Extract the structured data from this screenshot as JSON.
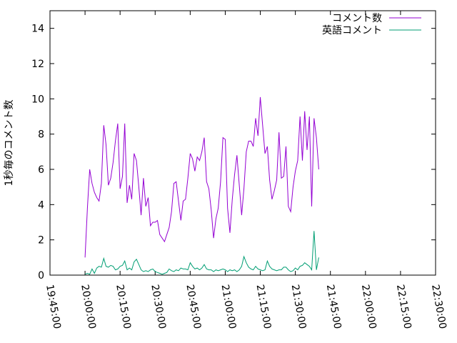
{
  "chart_data": {
    "type": "line",
    "ylabel": "1秒毎のコメント数",
    "ylim": [
      0,
      15
    ],
    "xlim": [
      "19:45:00",
      "22:30:00"
    ],
    "y_ticks": [
      "0",
      "2",
      "4",
      "6",
      "8",
      "10",
      "12",
      "14"
    ],
    "x_ticks": [
      "19:45:00",
      "20:00:00",
      "20:15:00",
      "20:30:00",
      "20:45:00",
      "21:00:00",
      "21:15:00",
      "21:30:00",
      "21:45:00",
      "22:00:00",
      "22:15:00",
      "22:30:00"
    ],
    "legend_position": "top-right",
    "series": [
      {
        "name": "コメント数",
        "color": "#9400d3",
        "points": [
          [
            "20:00:00",
            1.0
          ],
          [
            "20:01:00",
            3.8
          ],
          [
            "20:02:00",
            6.0
          ],
          [
            "20:03:00",
            5.2
          ],
          [
            "20:04:00",
            4.7
          ],
          [
            "20:05:00",
            4.4
          ],
          [
            "20:06:00",
            4.2
          ],
          [
            "20:07:00",
            5.2
          ],
          [
            "20:08:00",
            8.5
          ],
          [
            "20:09:00",
            7.4
          ],
          [
            "20:10:00",
            5.1
          ],
          [
            "20:11:00",
            5.5
          ],
          [
            "20:12:00",
            6.4
          ],
          [
            "20:13:00",
            7.6
          ],
          [
            "20:14:00",
            8.6
          ],
          [
            "20:15:00",
            4.9
          ],
          [
            "20:16:00",
            5.6
          ],
          [
            "20:17:00",
            8.6
          ],
          [
            "20:18:00",
            4.1
          ],
          [
            "20:19:00",
            5.1
          ],
          [
            "20:20:00",
            4.3
          ],
          [
            "20:21:00",
            6.9
          ],
          [
            "20:22:00",
            6.5
          ],
          [
            "20:23:00",
            5.0
          ],
          [
            "20:24:00",
            3.4
          ],
          [
            "20:25:00",
            5.5
          ],
          [
            "20:26:00",
            3.9
          ],
          [
            "20:27:00",
            4.4
          ],
          [
            "20:28:00",
            2.8
          ],
          [
            "20:29:00",
            3.0
          ],
          [
            "20:30:00",
            3.0
          ],
          [
            "20:31:00",
            3.1
          ],
          [
            "20:32:00",
            2.3
          ],
          [
            "20:33:00",
            2.1
          ],
          [
            "20:34:00",
            1.9
          ],
          [
            "20:35:00",
            2.3
          ],
          [
            "20:36:00",
            2.7
          ],
          [
            "20:37:00",
            3.6
          ],
          [
            "20:38:00",
            5.2
          ],
          [
            "20:39:00",
            5.3
          ],
          [
            "20:40:00",
            4.2
          ],
          [
            "20:41:00",
            3.1
          ],
          [
            "20:42:00",
            4.2
          ],
          [
            "20:43:00",
            4.3
          ],
          [
            "20:44:00",
            5.5
          ],
          [
            "20:45:00",
            6.9
          ],
          [
            "20:46:00",
            6.6
          ],
          [
            "20:47:00",
            5.9
          ],
          [
            "20:48:00",
            6.7
          ],
          [
            "20:49:00",
            6.5
          ],
          [
            "20:50:00",
            7.0
          ],
          [
            "20:51:00",
            7.8
          ],
          [
            "20:52:00",
            5.3
          ],
          [
            "20:53:00",
            4.9
          ],
          [
            "20:54:00",
            3.7
          ],
          [
            "20:55:00",
            2.1
          ],
          [
            "20:56:00",
            3.2
          ],
          [
            "20:57:00",
            3.8
          ],
          [
            "20:58:00",
            5.3
          ],
          [
            "20:59:00",
            7.8
          ],
          [
            "21:00:00",
            7.7
          ],
          [
            "21:01:00",
            3.8
          ],
          [
            "21:02:00",
            2.4
          ],
          [
            "21:03:00",
            4.3
          ],
          [
            "21:04:00",
            5.7
          ],
          [
            "21:05:00",
            6.8
          ],
          [
            "21:06:00",
            5.1
          ],
          [
            "21:07:00",
            3.4
          ],
          [
            "21:08:00",
            4.9
          ],
          [
            "21:09:00",
            7.0
          ],
          [
            "21:10:00",
            7.6
          ],
          [
            "21:11:00",
            7.6
          ],
          [
            "21:12:00",
            7.3
          ],
          [
            "21:13:00",
            8.9
          ],
          [
            "21:14:00",
            7.9
          ],
          [
            "21:15:00",
            10.1
          ],
          [
            "21:16:00",
            8.5
          ],
          [
            "21:17:00",
            6.9
          ],
          [
            "21:18:00",
            7.3
          ],
          [
            "21:19:00",
            5.4
          ],
          [
            "21:20:00",
            4.3
          ],
          [
            "21:21:00",
            4.8
          ],
          [
            "21:22:00",
            5.4
          ],
          [
            "21:23:00",
            8.1
          ],
          [
            "21:24:00",
            5.5
          ],
          [
            "21:25:00",
            5.6
          ],
          [
            "21:26:00",
            7.3
          ],
          [
            "21:27:00",
            3.9
          ],
          [
            "21:28:00",
            3.6
          ],
          [
            "21:29:00",
            5.0
          ],
          [
            "21:30:00",
            5.9
          ],
          [
            "21:31:00",
            6.5
          ],
          [
            "21:32:00",
            9.0
          ],
          [
            "21:33:00",
            6.5
          ],
          [
            "21:34:00",
            9.3
          ],
          [
            "21:35:00",
            7.1
          ],
          [
            "21:36:00",
            9.0
          ],
          [
            "21:37:00",
            3.9
          ],
          [
            "21:38:00",
            8.9
          ],
          [
            "21:39:00",
            7.8
          ],
          [
            "21:40:00",
            6.0
          ]
        ]
      },
      {
        "name": "英語コメント",
        "color": "#009e73",
        "points": [
          [
            "20:00:00",
            0.05
          ],
          [
            "20:01:00",
            0.1
          ],
          [
            "20:02:00",
            0.05
          ],
          [
            "20:03:00",
            0.35
          ],
          [
            "20:04:00",
            0.1
          ],
          [
            "20:05:00",
            0.4
          ],
          [
            "20:06:00",
            0.5
          ],
          [
            "20:07:00",
            0.45
          ],
          [
            "20:08:00",
            0.95
          ],
          [
            "20:09:00",
            0.5
          ],
          [
            "20:10:00",
            0.45
          ],
          [
            "20:11:00",
            0.55
          ],
          [
            "20:12:00",
            0.5
          ],
          [
            "20:13:00",
            0.3
          ],
          [
            "20:14:00",
            0.35
          ],
          [
            "20:15:00",
            0.5
          ],
          [
            "20:16:00",
            0.55
          ],
          [
            "20:17:00",
            0.8
          ],
          [
            "20:18:00",
            0.3
          ],
          [
            "20:19:00",
            0.4
          ],
          [
            "20:20:00",
            0.3
          ],
          [
            "20:21:00",
            0.75
          ],
          [
            "20:22:00",
            0.9
          ],
          [
            "20:23:00",
            0.6
          ],
          [
            "20:24:00",
            0.3
          ],
          [
            "20:25:00",
            0.2
          ],
          [
            "20:26:00",
            0.25
          ],
          [
            "20:27:00",
            0.2
          ],
          [
            "20:28:00",
            0.3
          ],
          [
            "20:29:00",
            0.35
          ],
          [
            "20:30:00",
            0.2
          ],
          [
            "20:31:00",
            0.15
          ],
          [
            "20:32:00",
            0.1
          ],
          [
            "20:33:00",
            0.05
          ],
          [
            "20:34:00",
            0.1
          ],
          [
            "20:35:00",
            0.15
          ],
          [
            "20:36:00",
            0.35
          ],
          [
            "20:37:00",
            0.25
          ],
          [
            "20:38:00",
            0.2
          ],
          [
            "20:39:00",
            0.3
          ],
          [
            "20:40:00",
            0.25
          ],
          [
            "20:41:00",
            0.4
          ],
          [
            "20:42:00",
            0.35
          ],
          [
            "20:43:00",
            0.35
          ],
          [
            "20:44:00",
            0.3
          ],
          [
            "20:45:00",
            0.7
          ],
          [
            "20:46:00",
            0.5
          ],
          [
            "20:47:00",
            0.35
          ],
          [
            "20:48:00",
            0.4
          ],
          [
            "20:49:00",
            0.3
          ],
          [
            "20:50:00",
            0.4
          ],
          [
            "20:51:00",
            0.6
          ],
          [
            "20:52:00",
            0.35
          ],
          [
            "20:53:00",
            0.3
          ],
          [
            "20:54:00",
            0.3
          ],
          [
            "20:55:00",
            0.2
          ],
          [
            "20:56:00",
            0.3
          ],
          [
            "20:57:00",
            0.25
          ],
          [
            "20:58:00",
            0.3
          ],
          [
            "20:59:00",
            0.35
          ],
          [
            "21:00:00",
            0.3
          ],
          [
            "21:01:00",
            0.2
          ],
          [
            "21:02:00",
            0.3
          ],
          [
            "21:03:00",
            0.25
          ],
          [
            "21:04:00",
            0.3
          ],
          [
            "21:05:00",
            0.2
          ],
          [
            "21:06:00",
            0.3
          ],
          [
            "21:07:00",
            0.5
          ],
          [
            "21:08:00",
            1.05
          ],
          [
            "21:09:00",
            0.7
          ],
          [
            "21:10:00",
            0.45
          ],
          [
            "21:11:00",
            0.35
          ],
          [
            "21:12:00",
            0.3
          ],
          [
            "21:13:00",
            0.5
          ],
          [
            "21:14:00",
            0.35
          ],
          [
            "21:15:00",
            0.3
          ],
          [
            "21:16:00",
            0.25
          ],
          [
            "21:17:00",
            0.3
          ],
          [
            "21:18:00",
            0.8
          ],
          [
            "21:19:00",
            0.5
          ],
          [
            "21:20:00",
            0.35
          ],
          [
            "21:21:00",
            0.3
          ],
          [
            "21:22:00",
            0.25
          ],
          [
            "21:23:00",
            0.3
          ],
          [
            "21:24:00",
            0.3
          ],
          [
            "21:25:00",
            0.45
          ],
          [
            "21:26:00",
            0.45
          ],
          [
            "21:27:00",
            0.3
          ],
          [
            "21:28:00",
            0.2
          ],
          [
            "21:29:00",
            0.25
          ],
          [
            "21:30:00",
            0.4
          ],
          [
            "21:31:00",
            0.3
          ],
          [
            "21:32:00",
            0.5
          ],
          [
            "21:33:00",
            0.55
          ],
          [
            "21:34:00",
            0.7
          ],
          [
            "21:35:00",
            0.6
          ],
          [
            "21:36:00",
            0.5
          ],
          [
            "21:37:00",
            0.3
          ],
          [
            "21:38:00",
            2.5
          ],
          [
            "21:39:00",
            0.3
          ],
          [
            "21:40:00",
            1.0
          ]
        ]
      }
    ]
  }
}
